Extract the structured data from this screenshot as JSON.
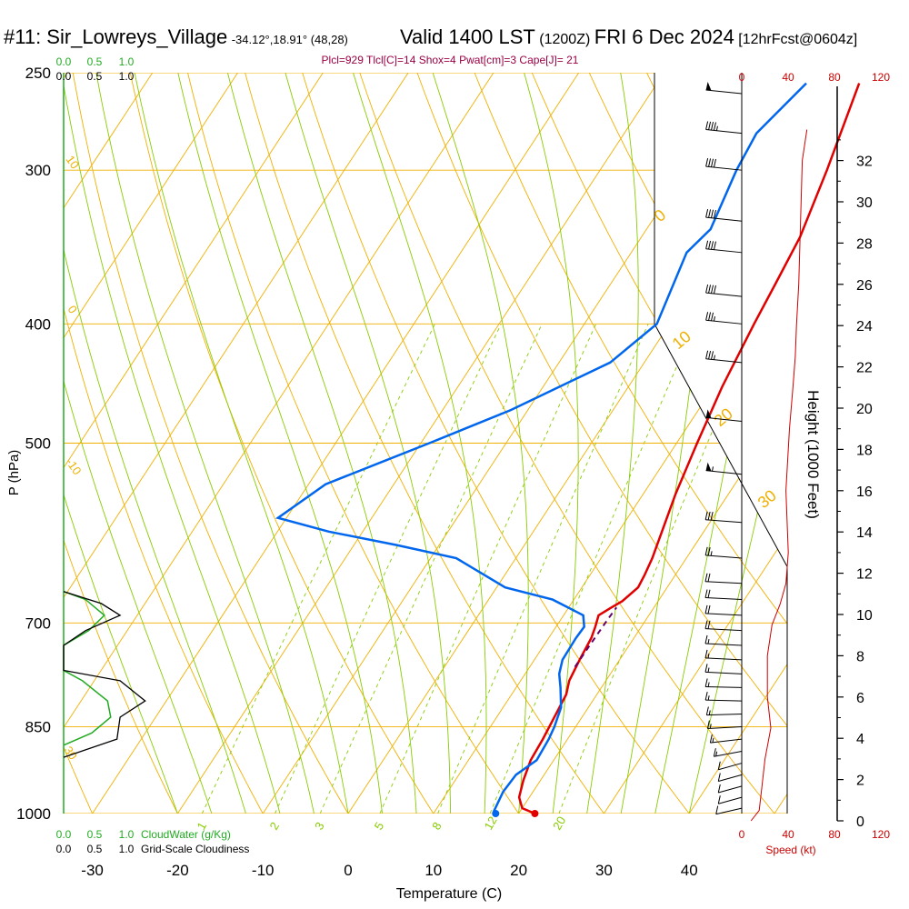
{
  "header": {
    "station": "#11: Sir_Lowreys_Village",
    "coords": "-34.12°,18.91° (48,28)",
    "valid": "Valid 1400 LST",
    "zulu": "(1200Z)",
    "date": "FRI 6 Dec 2024",
    "forecast": "[12hrFcst@0604z]"
  },
  "indices": "Plcl=929 Tlcl[C]=14 Shox=4 Pwat[cm]=3 Cape[J]= 21",
  "colors": {
    "isotherm": "#f0b000",
    "dry_adiabat": "#f0b000",
    "moist_adiabat": "#88cc00",
    "mixing_ratio": "#88cc00",
    "temperature": "#e00000",
    "dewpoint": "#0066ee",
    "parcel": "#660066",
    "cloudwater": "#22aa22",
    "cloudiness": "#000000",
    "speed": "#cc0000",
    "indices_text": "#990044"
  },
  "chart_data": {
    "type": "line",
    "title": "#11: Sir_Lowreys_Village",
    "xlabel": "Temperature (C)",
    "ylabel": "P (hPa)",
    "y2label": "Height (1000 Feet)",
    "x_ticks": [
      "-30",
      "-20",
      "-10",
      "0",
      "10",
      "20",
      "30",
      "40"
    ],
    "pressure_ticks": [
      "250",
      "300",
      "400",
      "500",
      "700",
      "850",
      "1000"
    ],
    "height_ticks": [
      "0",
      "2",
      "4",
      "6",
      "8",
      "10",
      "12",
      "14",
      "16",
      "18",
      "20",
      "22",
      "24",
      "26",
      "28",
      "30",
      "32"
    ],
    "speed_ticks": [
      "0",
      "40",
      "80",
      "120"
    ],
    "speed_label": "Speed (kt)",
    "cloudwater_ticks": [
      "0.0",
      "0.5",
      "1.0"
    ],
    "cloudiness_ticks": [
      "0.0",
      "0.5",
      "1.0"
    ],
    "cloudwater_label": "CloudWater (g/Kg)",
    "cloudiness_label": "Grid-Scale Cloudiness",
    "mixing_ratio_labels": [
      "1",
      "2",
      "3",
      "5",
      "8",
      "12",
      "20"
    ],
    "moist_labels": [
      "-10",
      "0",
      "10",
      "20",
      "30"
    ],
    "dry_labels": [
      "0",
      "10",
      "20",
      "30"
    ],
    "series": [
      {
        "name": "Temperature",
        "points": [
          [
            1000,
            21.9
          ],
          [
            990,
            20
          ],
          [
            970,
            18.8
          ],
          [
            940,
            18.0
          ],
          [
            905,
            17.3
          ],
          [
            870,
            17.1
          ],
          [
            800,
            16.4
          ],
          [
            780,
            15.7
          ],
          [
            750,
            15.3
          ],
          [
            720,
            15.0
          ],
          [
            705,
            14.6
          ],
          [
            690,
            14.1
          ],
          [
            680,
            15.0
          ],
          [
            672,
            15.8
          ],
          [
            655,
            16.6
          ],
          [
            640,
            16.4
          ],
          [
            620,
            16.0
          ],
          [
            600,
            15.4
          ],
          [
            550,
            13.8
          ],
          [
            500,
            12.4
          ],
          [
            450,
            11.0
          ],
          [
            400,
            9.9
          ],
          [
            370,
            9.3
          ],
          [
            340,
            8.6
          ],
          [
            300,
            6.6
          ],
          [
            255,
            3.7
          ]
        ]
      },
      {
        "name": "Dewpoint",
        "points": [
          [
            1000,
            17.3
          ],
          [
            995,
            16.9
          ],
          [
            960,
            16.5
          ],
          [
            930,
            16.7
          ],
          [
            905,
            18.0
          ],
          [
            870,
            17.8
          ],
          [
            850,
            17.5
          ],
          [
            820,
            16.8
          ],
          [
            790,
            15.2
          ],
          [
            770,
            14.0
          ],
          [
            750,
            13.3
          ],
          [
            720,
            13.2
          ],
          [
            705,
            13.3
          ],
          [
            690,
            12.3
          ],
          [
            670,
            7.5
          ],
          [
            655,
            1.0
          ],
          [
            620,
            -7.0
          ],
          [
            605,
            -15.0
          ],
          [
            590,
            -24.0
          ],
          [
            575,
            -31.0
          ],
          [
            540,
            -28.0
          ],
          [
            500,
            -19.0
          ],
          [
            470,
            -12.0
          ],
          [
            430,
            -4.0
          ],
          [
            400,
            -1.5
          ],
          [
            350,
            -3.5
          ],
          [
            335,
            -2.5
          ],
          [
            300,
            -4.0
          ],
          [
            280,
            -4.5
          ],
          [
            255,
            -2.5
          ]
        ]
      },
      {
        "name": "Parcel",
        "points": [
          [
            760,
            15.3
          ],
          [
            720,
            15.4
          ],
          [
            695,
            15.5
          ],
          [
            680,
            15.6
          ]
        ]
      }
    ],
    "wind_barbs": [
      {
        "p": 260,
        "dir": 260,
        "spd": 50
      },
      {
        "p": 280,
        "dir": 260,
        "spd": 45
      },
      {
        "p": 300,
        "dir": 260,
        "spd": 40
      },
      {
        "p": 330,
        "dir": 260,
        "spd": 40
      },
      {
        "p": 350,
        "dir": 260,
        "spd": 40
      },
      {
        "p": 380,
        "dir": 260,
        "spd": 40
      },
      {
        "p": 400,
        "dir": 260,
        "spd": 35
      },
      {
        "p": 430,
        "dir": 260,
        "spd": 35
      },
      {
        "p": 480,
        "dir": 260,
        "spd": 50
      },
      {
        "p": 530,
        "dir": 260,
        "spd": 55
      },
      {
        "p": 580,
        "dir": 265,
        "spd": 30
      },
      {
        "p": 620,
        "dir": 265,
        "spd": 25
      },
      {
        "p": 650,
        "dir": 270,
        "spd": 20
      },
      {
        "p": 670,
        "dir": 270,
        "spd": 20
      },
      {
        "p": 690,
        "dir": 270,
        "spd": 20
      },
      {
        "p": 710,
        "dir": 270,
        "spd": 20
      },
      {
        "p": 730,
        "dir": 270,
        "spd": 15
      },
      {
        "p": 750,
        "dir": 270,
        "spd": 15
      },
      {
        "p": 770,
        "dir": 270,
        "spd": 15
      },
      {
        "p": 790,
        "dir": 275,
        "spd": 15
      },
      {
        "p": 810,
        "dir": 275,
        "spd": 15
      },
      {
        "p": 830,
        "dir": 285,
        "spd": 15
      },
      {
        "p": 850,
        "dir": 290,
        "spd": 15
      },
      {
        "p": 870,
        "dir": 300,
        "spd": 15
      },
      {
        "p": 890,
        "dir": 310,
        "spd": 15
      },
      {
        "p": 910,
        "dir": 320,
        "spd": 10
      },
      {
        "p": 930,
        "dir": 320,
        "spd": 10
      },
      {
        "p": 950,
        "dir": 320,
        "spd": 10
      },
      {
        "p": 970,
        "dir": 320,
        "spd": 10
      },
      {
        "p": 990,
        "dir": 315,
        "spd": 10
      }
    ],
    "speed_profile": [
      {
        "h": 0,
        "spd": 8
      },
      {
        "h": 0.5,
        "spd": 15
      },
      {
        "h": 1.5,
        "spd": 17
      },
      {
        "h": 3,
        "spd": 20
      },
      {
        "h": 4.5,
        "spd": 25
      },
      {
        "h": 6,
        "spd": 22
      },
      {
        "h": 8,
        "spd": 22
      },
      {
        "h": 9.5,
        "spd": 26
      },
      {
        "h": 10.5,
        "spd": 33
      },
      {
        "h": 11.5,
        "spd": 38
      },
      {
        "h": 13,
        "spd": 40
      },
      {
        "h": 16,
        "spd": 38
      },
      {
        "h": 19,
        "spd": 41
      },
      {
        "h": 21,
        "spd": 44
      },
      {
        "h": 22.5,
        "spd": 46
      },
      {
        "h": 24,
        "spd": 47
      },
      {
        "h": 26,
        "spd": 49
      },
      {
        "h": 28,
        "spd": 50
      },
      {
        "h": 30,
        "spd": 51
      },
      {
        "h": 32,
        "spd": 52
      },
      {
        "h": 33.5,
        "spd": 56
      }
    ],
    "cloudwater_profile": [
      {
        "p": 660,
        "v": 0.0
      },
      {
        "p": 670,
        "v": 0.35
      },
      {
        "p": 690,
        "v": 0.65
      },
      {
        "p": 710,
        "v": 0.4
      },
      {
        "p": 730,
        "v": 0.0
      },
      {
        "p": 765,
        "v": 0.0
      },
      {
        "p": 780,
        "v": 0.3
      },
      {
        "p": 810,
        "v": 0.7
      },
      {
        "p": 835,
        "v": 0.75
      },
      {
        "p": 860,
        "v": 0.45
      },
      {
        "p": 880,
        "v": 0.0
      }
    ],
    "cloudiness_profile": [
      {
        "p": 660,
        "v": 0.0
      },
      {
        "p": 675,
        "v": 0.6
      },
      {
        "p": 690,
        "v": 0.9
      },
      {
        "p": 710,
        "v": 0.35
      },
      {
        "p": 730,
        "v": 0.0
      },
      {
        "p": 765,
        "v": 0.0
      },
      {
        "p": 780,
        "v": 0.9
      },
      {
        "p": 810,
        "v": 1.3
      },
      {
        "p": 835,
        "v": 0.9
      },
      {
        "p": 870,
        "v": 0.85
      },
      {
        "p": 900,
        "v": 0.0
      }
    ]
  }
}
